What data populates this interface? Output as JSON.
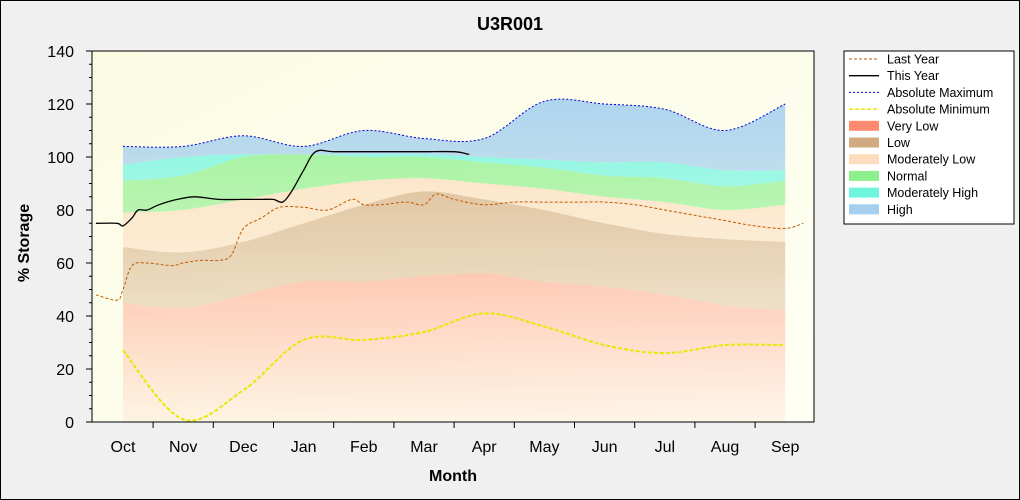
{
  "chart_data": {
    "type": "area",
    "title": "U3R001",
    "xlabel": "Month",
    "ylabel": "% Storage",
    "ylim": [
      0,
      140
    ],
    "yticks": [
      0,
      20,
      40,
      60,
      80,
      100,
      120,
      140
    ],
    "categories": [
      "Oct",
      "Nov",
      "Dec",
      "Jan",
      "Feb",
      "Mar",
      "Apr",
      "May",
      "Jun",
      "Jul",
      "Aug",
      "Sep"
    ],
    "legend_position": "right",
    "grid": false,
    "bands": [
      {
        "name": "Very Low",
        "color": "#ff8a70",
        "lower": [
          0,
          0,
          0,
          0,
          0,
          0,
          0,
          0,
          0,
          0,
          0,
          0
        ],
        "upper": [
          45,
          43,
          48,
          53,
          53,
          55,
          56,
          53,
          51,
          48,
          44,
          42
        ]
      },
      {
        "name": "Low",
        "color": "#d2aa80",
        "lower": [
          45,
          43,
          48,
          53,
          53,
          55,
          56,
          53,
          51,
          48,
          44,
          42
        ],
        "upper": [
          66,
          64,
          68,
          75,
          82,
          87,
          84,
          80,
          75,
          71,
          69,
          68
        ]
      },
      {
        "name": "Moderately Low",
        "color": "#fbdcbc",
        "lower": [
          66,
          64,
          68,
          75,
          82,
          87,
          84,
          80,
          75,
          71,
          69,
          68
        ],
        "upper": [
          79,
          80,
          84,
          88,
          91,
          92,
          90,
          88,
          85,
          83,
          80,
          82
        ]
      },
      {
        "name": "Normal",
        "color": "#8cf08c",
        "lower": [
          79,
          80,
          84,
          88,
          91,
          92,
          90,
          88,
          85,
          83,
          80,
          82
        ],
        "upper": [
          91,
          93,
          100,
          101,
          100,
          100,
          98,
          96,
          93,
          92,
          89,
          91
        ]
      },
      {
        "name": "Moderately High",
        "color": "#6ff5e0",
        "lower": [
          91,
          93,
          100,
          101,
          100,
          100,
          98,
          96,
          93,
          92,
          89,
          91
        ],
        "upper": [
          97,
          100,
          101,
          101,
          101,
          101,
          100,
          99,
          98,
          98,
          95,
          95
        ]
      },
      {
        "name": "High",
        "color": "#a4cfee",
        "lower": [
          97,
          100,
          101,
          101,
          101,
          101,
          100,
          99,
          98,
          98,
          95,
          95
        ],
        "upper": [
          104,
          104,
          108,
          104,
          110,
          107,
          107,
          121,
          120,
          118,
          110,
          120
        ]
      }
    ],
    "series": [
      {
        "name": "Last Year",
        "color": "#c05a00",
        "dash": "3,2",
        "width": 1,
        "x": [
          -0.45,
          -0.1,
          0.0,
          0.15,
          0.4,
          0.8,
          1.0,
          1.3,
          1.6,
          1.8,
          2.0,
          2.3,
          2.6,
          3.0,
          3.4,
          3.8,
          4.0,
          4.3,
          4.7,
          5.0,
          5.2,
          5.5,
          6.0,
          6.5,
          7.0,
          7.5,
          8.0,
          8.5,
          9.0,
          9.5,
          10.0,
          10.5,
          11.0,
          11.3
        ],
        "y": [
          48,
          46,
          50,
          59,
          60,
          59,
          60,
          61,
          61,
          63,
          73,
          77,
          81,
          81,
          80,
          84,
          82,
          82,
          83,
          82,
          86,
          84,
          82,
          83,
          83,
          83,
          83,
          82,
          80,
          78,
          76,
          74,
          73,
          75
        ]
      },
      {
        "name": "This Year",
        "color": "#000000",
        "dash": "",
        "width": 1.3,
        "x": [
          -0.45,
          -0.1,
          0.0,
          0.15,
          0.25,
          0.4,
          0.6,
          0.9,
          1.2,
          1.6,
          2.0,
          2.3,
          2.5,
          2.65,
          2.8,
          3.0,
          3.2,
          3.5,
          4.0,
          4.5,
          5.0,
          5.5,
          5.75
        ],
        "y": [
          75,
          75,
          74,
          77,
          80,
          80,
          82,
          84,
          85,
          84,
          84,
          84,
          84,
          83,
          87,
          95,
          102,
          102,
          102,
          102,
          102,
          102,
          101
        ]
      },
      {
        "name": "Absolute Maximum",
        "color": "#0000cc",
        "dash": "2,2",
        "width": 1,
        "x": [
          0,
          1,
          2,
          3,
          4,
          5,
          6,
          7,
          8,
          9,
          10,
          11
        ],
        "y": [
          104,
          104,
          108,
          104,
          110,
          107,
          107,
          121,
          120,
          118,
          110,
          120
        ]
      },
      {
        "name": "Absolute Minimum",
        "color": "#e8e800",
        "dash": "4,2",
        "width": 2,
        "x": [
          0,
          1,
          2,
          3,
          4,
          5,
          6,
          7,
          8,
          9,
          10,
          11
        ],
        "y": [
          27,
          1,
          12,
          31,
          31,
          34,
          41,
          36,
          29,
          26,
          29,
          29
        ]
      }
    ]
  }
}
